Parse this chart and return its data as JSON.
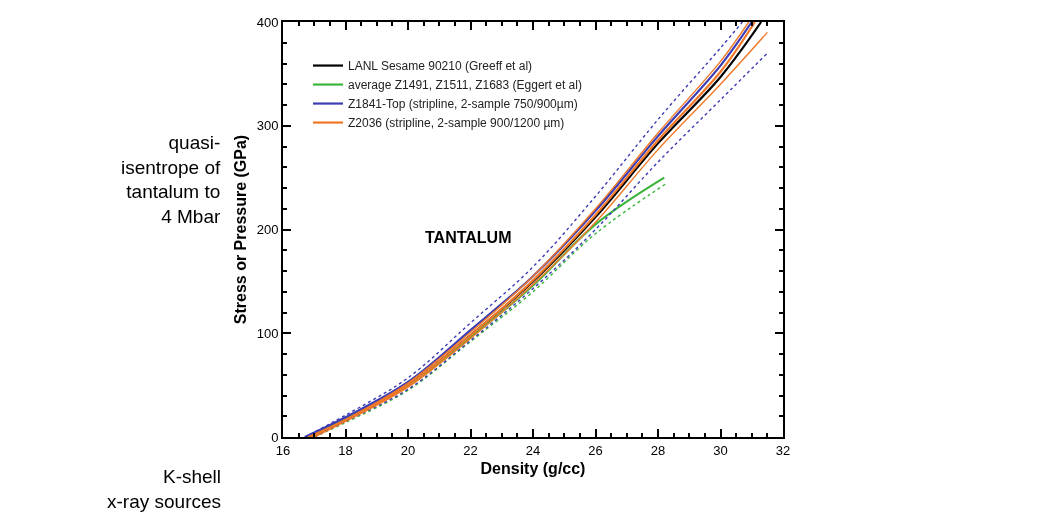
{
  "chart_data": {
    "type": "line",
    "xlabel": "Density (g/cc)",
    "ylabel": "Stress or Pressure (GPa)",
    "xlim": [
      16,
      32
    ],
    "xticks": [
      16,
      18,
      20,
      22,
      24,
      26,
      28,
      30,
      32
    ],
    "ylim": [
      0,
      400
    ],
    "yticks": [
      0,
      100,
      200,
      300,
      400
    ],
    "legend": "top left",
    "line_style": "solid",
    "marker": "none",
    "annotations": [
      "TANTALUM",
      "quasi-\nisentrope of\ntantalum to\n4 Mbar",
      "K-shell\nx-ray sources"
    ],
    "series": [
      {
        "name": "LANL Sesame 90210 (Greeff et al)",
        "color": "#000000",
        "x": [
          16.8,
          18,
          20,
          22,
          24,
          26,
          28,
          30,
          31.3
        ],
        "values": [
          0,
          17,
          50,
          98,
          150,
          212,
          283,
          347,
          400
        ]
      },
      {
        "name": "average Z1491, Z1511, Z1683 (Eggert et al)",
        "color": "#3cb43c",
        "x": [
          16.8,
          18,
          20,
          22,
          24,
          26,
          28.2
        ],
        "values": [
          0,
          17,
          49,
          96,
          146,
          205,
          250
        ]
      },
      {
        "name": "Z1841-Top (stripline, 2-sample 750/900µm)",
        "color": "#3c3cb4",
        "x": [
          16.7,
          18,
          20,
          22,
          24,
          26,
          28,
          30,
          31.0
        ],
        "values": [
          0,
          19,
          53,
          103,
          155,
          218,
          290,
          358,
          400
        ]
      },
      {
        "name": "Z2036 (stripline, 2-sample 900/1200 µm)",
        "color": "#f07828",
        "x": [
          16.9,
          18,
          20,
          22,
          24,
          26,
          28,
          30,
          31.1
        ],
        "values": [
          0,
          16,
          50,
          98,
          151,
          214,
          286,
          352,
          400
        ]
      },
      {
        "color": "#3cb43c",
        "line_style": "dotted",
        "x": [
          17,
          18,
          20,
          22,
          24,
          26,
          28.3
        ],
        "values": [
          0,
          14,
          45,
          92,
          140,
          196,
          245
        ]
      },
      {
        "color": "#3c3cb4",
        "line_style": "dotted",
        "x": [
          16.7,
          18,
          20,
          22,
          24,
          26,
          28,
          30,
          30.7
        ],
        "values": [
          0,
          21,
          57,
          110,
          164,
          232,
          306,
          375,
          400
        ]
      },
      {
        "color": "#3c3cb4",
        "line_style": "dotted",
        "x": [
          17,
          18,
          20,
          22,
          24,
          26,
          28,
          30,
          31.5
        ],
        "values": [
          0,
          15,
          46,
          93,
          143,
          200,
          265,
          325,
          370
        ]
      },
      {
        "color": "#f07828",
        "x": [
          16.8,
          18,
          20,
          22,
          24,
          26,
          28,
          30,
          30.9
        ],
        "values": [
          0,
          17,
          52,
          101,
          155,
          220,
          293,
          362,
          400
        ]
      },
      {
        "color": "#f07828",
        "x": [
          17,
          18,
          20,
          22,
          24,
          26,
          28,
          30,
          31.5
        ],
        "values": [
          0,
          15,
          48,
          95,
          147,
          207,
          277,
          340,
          390
        ]
      }
    ]
  }
}
